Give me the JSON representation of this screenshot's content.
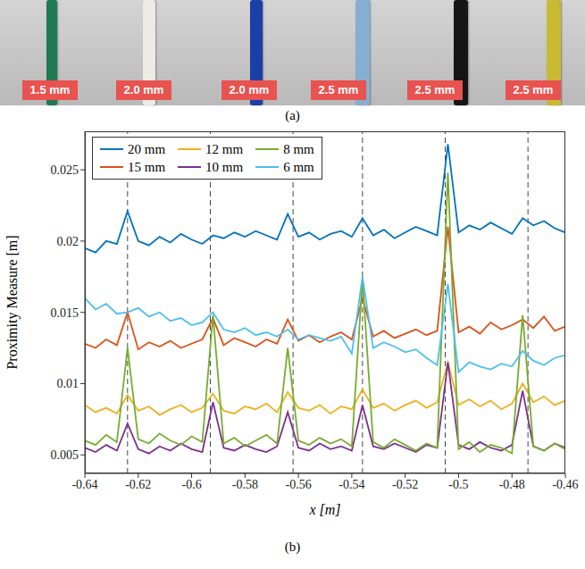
{
  "photo": {
    "caption": "(a)",
    "labels": [
      "1.5 mm",
      "2.0 mm",
      "2.0 mm",
      "2.5 mm",
      "2.5 mm",
      "2.5 mm"
    ]
  },
  "chart_data": {
    "type": "line",
    "caption": "(b)",
    "x_label": "x [m]",
    "y_label": "Proximity Measure [m]",
    "legend": "top left",
    "xlim": [
      -0.64,
      -0.46
    ],
    "xticks": [
      -0.64,
      -0.62,
      -0.6,
      -0.58,
      -0.56,
      -0.54,
      -0.52,
      -0.5,
      -0.48,
      -0.46
    ],
    "ylim": [
      0.0037,
      0.0277
    ],
    "yticks": [
      0.005,
      0.01,
      0.015,
      0.02,
      0.025
    ],
    "vlines": [
      -0.624,
      -0.593,
      -0.562,
      -0.536,
      -0.505,
      -0.474
    ],
    "x": [
      -0.64,
      -0.636,
      -0.632,
      -0.628,
      -0.624,
      -0.62,
      -0.616,
      -0.612,
      -0.608,
      -0.604,
      -0.6,
      -0.596,
      -0.592,
      -0.588,
      -0.584,
      -0.58,
      -0.576,
      -0.572,
      -0.568,
      -0.564,
      -0.56,
      -0.556,
      -0.552,
      -0.548,
      -0.544,
      -0.54,
      -0.536,
      -0.532,
      -0.528,
      -0.524,
      -0.52,
      -0.516,
      -0.512,
      -0.508,
      -0.504,
      -0.5,
      -0.496,
      -0.492,
      -0.488,
      -0.484,
      -0.48,
      -0.476,
      -0.472,
      -0.468,
      -0.464,
      -0.46
    ],
    "series": [
      {
        "name": "20 mm",
        "color": "#0072bd",
        "values": [
          0.0195,
          0.0192,
          0.02,
          0.0198,
          0.0221,
          0.02,
          0.0197,
          0.0203,
          0.0199,
          0.0205,
          0.0201,
          0.0198,
          0.0204,
          0.0202,
          0.0206,
          0.0203,
          0.0207,
          0.0204,
          0.0201,
          0.0219,
          0.0203,
          0.0206,
          0.0201,
          0.0205,
          0.0207,
          0.0203,
          0.0216,
          0.0204,
          0.0208,
          0.0202,
          0.0206,
          0.021,
          0.0207,
          0.0204,
          0.0268,
          0.0206,
          0.0211,
          0.0208,
          0.0213,
          0.0209,
          0.0205,
          0.0216,
          0.0211,
          0.0214,
          0.0209,
          0.0206
        ]
      },
      {
        "name": "15 mm",
        "color": "#d95319",
        "values": [
          0.0128,
          0.0125,
          0.0131,
          0.0127,
          0.015,
          0.0124,
          0.0129,
          0.0126,
          0.013,
          0.0125,
          0.0128,
          0.0131,
          0.0146,
          0.0127,
          0.0132,
          0.0129,
          0.0126,
          0.0131,
          0.0128,
          0.0145,
          0.013,
          0.0134,
          0.0129,
          0.0133,
          0.0136,
          0.0131,
          0.016,
          0.0133,
          0.0137,
          0.0132,
          0.0135,
          0.0138,
          0.0134,
          0.0137,
          0.021,
          0.0136,
          0.014,
          0.0135,
          0.0143,
          0.0138,
          0.0141,
          0.0145,
          0.0139,
          0.0147,
          0.0137,
          0.014
        ]
      },
      {
        "name": "12 mm",
        "color": "#edb120",
        "values": [
          0.0085,
          0.008,
          0.0083,
          0.0079,
          0.0092,
          0.0081,
          0.0084,
          0.0078,
          0.0082,
          0.0085,
          0.008,
          0.0083,
          0.0093,
          0.0081,
          0.0079,
          0.0084,
          0.0082,
          0.0086,
          0.008,
          0.0094,
          0.0083,
          0.0081,
          0.0085,
          0.0079,
          0.0084,
          0.0082,
          0.0096,
          0.0083,
          0.0086,
          0.0081,
          0.0085,
          0.0088,
          0.0083,
          0.0087,
          0.0115,
          0.0085,
          0.0089,
          0.0084,
          0.0088,
          0.0082,
          0.0086,
          0.01,
          0.0087,
          0.0091,
          0.0085,
          0.0088
        ]
      },
      {
        "name": "10 mm",
        "color": "#7e2f8e",
        "values": [
          0.0055,
          0.0052,
          0.0057,
          0.0053,
          0.0072,
          0.0054,
          0.0051,
          0.0056,
          0.0053,
          0.0058,
          0.0054,
          0.0052,
          0.0087,
          0.0055,
          0.0053,
          0.0057,
          0.0054,
          0.0052,
          0.0056,
          0.008,
          0.0055,
          0.0053,
          0.0058,
          0.0054,
          0.0056,
          0.0053,
          0.0085,
          0.0056,
          0.0054,
          0.0058,
          0.0055,
          0.0052,
          0.0057,
          0.0055,
          0.0115,
          0.0057,
          0.0054,
          0.0059,
          0.0055,
          0.0053,
          0.0057,
          0.0095,
          0.0056,
          0.0053,
          0.0058,
          0.0055
        ]
      },
      {
        "name": "8 mm",
        "color": "#77ac30",
        "values": [
          0.006,
          0.0057,
          0.0064,
          0.0059,
          0.0125,
          0.0061,
          0.0058,
          0.0065,
          0.006,
          0.0057,
          0.0063,
          0.0059,
          0.0148,
          0.0058,
          0.0062,
          0.0056,
          0.006,
          0.0064,
          0.0058,
          0.0125,
          0.006,
          0.0057,
          0.0062,
          0.0058,
          0.0061,
          0.0056,
          0.0173,
          0.0059,
          0.0055,
          0.0061,
          0.0057,
          0.0053,
          0.0058,
          0.0055,
          0.0248,
          0.0054,
          0.0059,
          0.0052,
          0.0057,
          0.0055,
          0.0051,
          0.0148,
          0.0056,
          0.0053,
          0.0058,
          0.0054
        ]
      },
      {
        "name": "6 mm",
        "color": "#4dbeee",
        "values": [
          0.016,
          0.0152,
          0.0156,
          0.0149,
          0.015,
          0.0153,
          0.0147,
          0.015,
          0.0144,
          0.0146,
          0.0141,
          0.0143,
          0.015,
          0.0138,
          0.0136,
          0.0139,
          0.0134,
          0.0136,
          0.0133,
          0.0138,
          0.0131,
          0.0134,
          0.0132,
          0.013,
          0.0133,
          0.0121,
          0.0175,
          0.0125,
          0.0129,
          0.0126,
          0.0122,
          0.0124,
          0.0118,
          0.0113,
          0.017,
          0.0108,
          0.0115,
          0.0112,
          0.011,
          0.0114,
          0.0112,
          0.0123,
          0.0116,
          0.0113,
          0.0118,
          0.012
        ]
      }
    ]
  }
}
